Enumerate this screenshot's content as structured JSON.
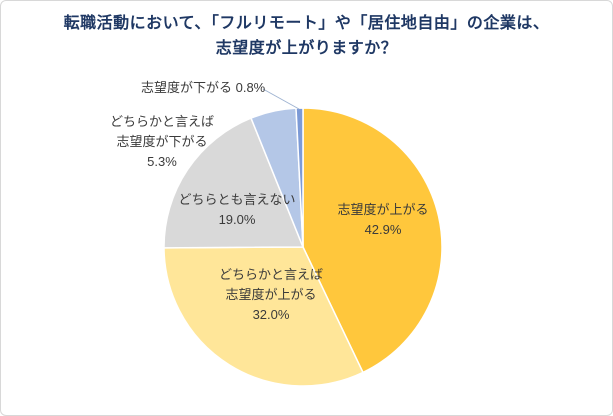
{
  "title": {
    "line1": "転職活動において、「フルリモート」や「居住地自由」の企業は、",
    "line2": "志望度が上がりますか？"
  },
  "chart_data": {
    "type": "pie",
    "title": "転職活動において、「フルリモート」や「居住地自由」の企業は、志望度が上がりますか？",
    "categories": [
      "志望度が上がる",
      "どちらかと言えば志望度が上がる",
      "どちらとも言えない",
      "どちらかと言えば志望度が下がる",
      "志望度が下がる"
    ],
    "values": [
      42.9,
      32.0,
      19.0,
      5.3,
      0.8
    ],
    "unit": "%",
    "colors": [
      "#FFC73C",
      "#FFE699",
      "#D9D9D9",
      "#B4C7E7",
      "#7C9AD6"
    ],
    "start_angle_deg": -90,
    "direction": "clockwise",
    "legend": "none",
    "labels": {
      "slice1": {
        "line1": "志望度が上がる",
        "line2": "42.9%"
      },
      "slice2": {
        "line1": "どちらかと言えば",
        "line2": "志望度が上がる",
        "line3": "32.0%"
      },
      "slice3": {
        "line1": "どちらとも言えない",
        "line2": "19.0%"
      },
      "slice4": {
        "line1": "どちらかと言えば",
        "line2": "志望度が下がる",
        "line3": "5.3%"
      },
      "slice5": {
        "line1": "志望度が下がる 0.8%"
      }
    }
  },
  "colors": {
    "title_text": "#1F3864",
    "label_text": "#3B3B3B",
    "border": "#D8D8D8",
    "leader_line": "#9FB3D1",
    "slice_separator": "#FFFFFF"
  }
}
